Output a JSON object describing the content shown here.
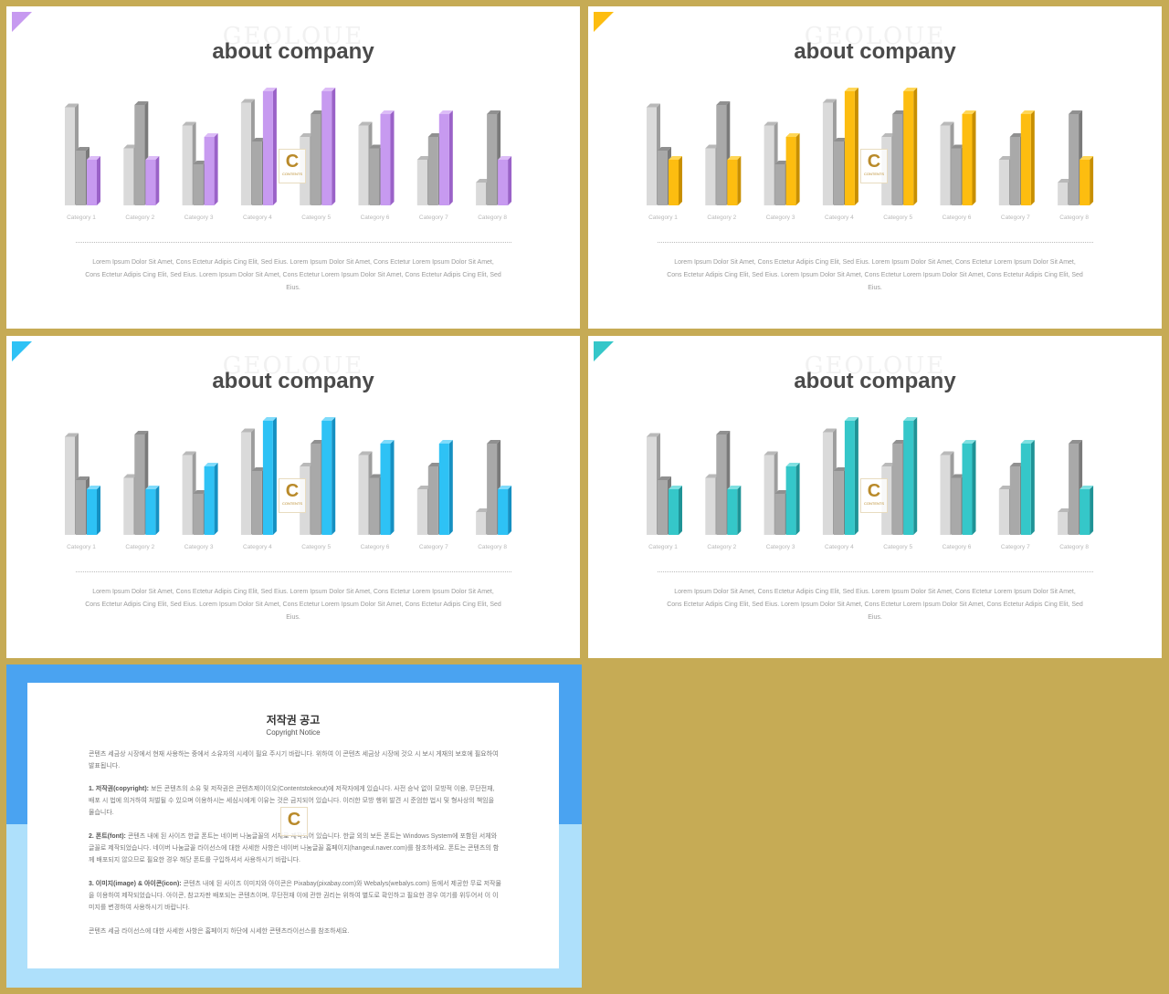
{
  "slides": [
    {
      "title": "about company",
      "watermark": "GEOLOUE",
      "accent": "#c79af0",
      "accent_dark": "#9a62c8",
      "accent_top": "#dcbcf7",
      "body": "Lorem Ipsum Dolor Sit Amet, Cons Ectetur Adipis Cing Elit, Sed Eius. Lorem Ipsum Dolor Sit Amet, Cons Ectetur Lorem Ipsum Dolor Sit Amet, Cons Ectetur Adipis Cing Elit, Sed Eius. Lorem Ipsum Dolor Sit Amet, Cons Ectetur Lorem Ipsum Dolor Sit Amet, Cons Ectetur Adipis Cing Elit, Sed Eius.",
      "logo": {
        "letter": "C",
        "text": "CONTENTS"
      }
    },
    {
      "title": "about company",
      "watermark": "GEOLOUE",
      "accent": "#fdbd10",
      "accent_dark": "#c88f00",
      "accent_top": "#ffd656",
      "body": "Lorem Ipsum Dolor Sit Amet, Cons Ectetur Adipis Cing Elit, Sed Eius. Lorem Ipsum Dolor Sit Amet, Cons Ectetur Lorem Ipsum Dolor Sit Amet, Cons Ectetur Adipis Cing Elit, Sed Eius. Lorem Ipsum Dolor Sit Amet, Cons Ectetur Lorem Ipsum Dolor Sit Amet, Cons Ectetur Adipis Cing Elit, Sed Eius.",
      "logo": {
        "letter": "C",
        "text": "CONTENTS"
      }
    },
    {
      "title": "about company",
      "watermark": "GEOLOUE",
      "accent": "#2ec2f5",
      "accent_dark": "#1590c2",
      "accent_top": "#7fdbfb",
      "body": "Lorem Ipsum Dolor Sit Amet, Cons Ectetur Adipis Cing Elit, Sed Eius. Lorem Ipsum Dolor Sit Amet, Cons Ectetur Lorem Ipsum Dolor Sit Amet, Cons Ectetur Adipis Cing Elit, Sed Eius. Lorem Ipsum Dolor Sit Amet, Cons Ectetur Lorem Ipsum Dolor Sit Amet, Cons Ectetur Adipis Cing Elit, Sed Eius.",
      "logo": {
        "letter": "C",
        "text": "CONTENTS"
      }
    },
    {
      "title": "about company",
      "watermark": "GEOLOUE",
      "accent": "#35c7c9",
      "accent_dark": "#1f9396",
      "accent_top": "#7fe0e1",
      "body": "Lorem Ipsum Dolor Sit Amet, Cons Ectetur Adipis Cing Elit, Sed Eius. Lorem Ipsum Dolor Sit Amet, Cons Ectetur Lorem Ipsum Dolor Sit Amet, Cons Ectetur Adipis Cing Elit, Sed Eius. Lorem Ipsum Dolor Sit Amet, Cons Ectetur Lorem Ipsum Dolor Sit Amet, Cons Ectetur Adipis Cing Elit, Sed Eius.",
      "logo": {
        "letter": "C",
        "text": "CONTENTS"
      }
    }
  ],
  "chart_data": {
    "type": "bar",
    "categories": [
      "Category 1",
      "Category 2",
      "Category 3",
      "Category 4",
      "Category 5",
      "Category 6",
      "Category 7",
      "Category 8"
    ],
    "series": [
      {
        "values": [
          4.3,
          2.5,
          3.5,
          4.5,
          3.0,
          3.5,
          2.0,
          1.0
        ]
      },
      {
        "values": [
          2.4,
          4.4,
          1.8,
          2.8,
          4.0,
          2.5,
          3.0,
          4.0
        ]
      },
      {
        "values": [
          2.0,
          2.0,
          3.0,
          5.0,
          5.0,
          4.0,
          4.0,
          2.0
        ]
      }
    ],
    "ylim": [
      0,
      5
    ],
    "grid": false,
    "legend": "none",
    "colors": [
      "#dadada",
      "#a9a9a9"
    ]
  },
  "notice": {
    "title": "저작권 공고",
    "subtitle": "Copyright Notice",
    "intro": "콘텐츠 세금상 시장에서 현재 사용하는 중에서 소유자의 시세이 필요 주시기 바랍니다. 위하여 이 콘텐츠 세금상 시장에 것으 시 보시 게재의 보호에 필요하여 발표됩니다.",
    "items": [
      {
        "label": "1. 저작권(copyright):",
        "text": "보든 콘텐츠의 소유 및 저작권은 콘텐츠제이이오(Contentstokeout)에 저작자에게 있습니다. 사전 승낙 없이 모방적 이용, 무단전재, 배포 시 법에 의거하여 처벌될 수 있으며 이용하시는 세심시에게 이유는 것은 금지되어 있습니다. 이러한 모방 행위 발견 시 준엄한 법시 및 형사상의 책임을 물습니다."
      },
      {
        "label": "2. 폰트(font):",
        "text": "콘텐츠 내에 된 사이즈 한글 폰트는 네이버 나눔글꼴의 서체로 제작되어 있습니다. 한글 외의 보든 폰트는 Windows System에 포함된 서체와 글꼴로 제작되었습니다. 네이버 나눔글꼴 라이선스에 대한 사세한 사항은 네이버 나눔글꼴 홈페이지(hangeul.naver.com)를 참조하세요. 폰트는 콘텐츠의 함께 배포되지 않으므로 필요한 경우 해당 폰트를 구입하셔서 사용하시기 바랍니다."
      },
      {
        "label": "3. 이미지(image) & 아이콘(icon):",
        "text": "콘텐츠 내에 된 사이즈 이미지와 아이콘은 Pixabay(pixabay.com)와 Webalys(webalys.com) 등에서 제공한 무료 저작물을 이용하여 제작되었습니다. 아이콘, 참고자판 배포되는 콘텐츠이며, 무단전재 이에 관한 권리는 위하여 별도로 확인하고 필요한 경우 여기를 위두어서 이 이미지를 변경하여 사용하시기 바랍니다."
      }
    ],
    "footer": "콘텐츠 세금 라이선스에 대한 사세한 사항은 홈페이지 하단에 시세한 콘텐츠라이선스를 참조하세요.",
    "logo": {
      "letter": "C"
    }
  }
}
